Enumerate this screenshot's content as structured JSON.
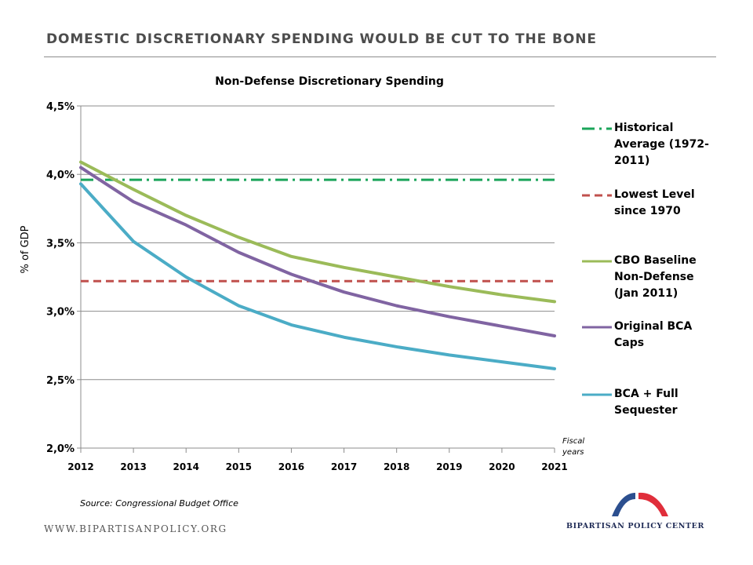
{
  "header": {
    "title": "DOMESTIC DISCRETIONARY SPENDING WOULD BE CUT TO THE BONE"
  },
  "chart_data": {
    "type": "line",
    "title": "Non-Defense Discretionary Spending",
    "ylabel": "% of GDP",
    "xlabel_note": "Fiscal years",
    "ylim": [
      2.0,
      4.5
    ],
    "yticks": [
      {
        "value": 4.5,
        "label": "4,5%"
      },
      {
        "value": 4.0,
        "label": "4,0%"
      },
      {
        "value": 3.5,
        "label": "3,5%"
      },
      {
        "value": 3.0,
        "label": "3,0%"
      },
      {
        "value": 2.5,
        "label": "2,5%"
      },
      {
        "value": 2.0,
        "label": "2,0%"
      }
    ],
    "x": [
      "2012",
      "2013",
      "2014",
      "2015",
      "2016",
      "2017",
      "2018",
      "2019",
      "2020",
      "2021"
    ],
    "grid": "horizontal",
    "legend_position": "right",
    "reference_lines": [
      {
        "name": "Historical Average (1972-2011)",
        "value": 3.96,
        "color": "#1aa55a",
        "style": "dash-dot"
      },
      {
        "name": "Lowest Level since 1970",
        "value": 3.22,
        "color": "#c0504d",
        "style": "dashed"
      }
    ],
    "series": [
      {
        "name": "CBO Baseline Non-Defense (Jan 2011)",
        "color": "#9bbb59",
        "values": [
          4.09,
          3.89,
          3.7,
          3.54,
          3.4,
          3.32,
          3.25,
          3.18,
          3.12,
          3.07
        ]
      },
      {
        "name": "Original BCA Caps",
        "color": "#8064a2",
        "values": [
          4.05,
          3.8,
          3.63,
          3.43,
          3.27,
          3.14,
          3.04,
          2.96,
          2.89,
          2.82
        ]
      },
      {
        "name": "BCA + Full Sequester",
        "color": "#4bacc6",
        "values": [
          3.93,
          3.51,
          3.25,
          3.04,
          2.9,
          2.81,
          2.74,
          2.68,
          2.63,
          2.58
        ]
      }
    ]
  },
  "footer": {
    "source": "Source: Congressional Budget Office",
    "website": "WWW.BIPARTISANPOLICY.ORG",
    "org_name": "BIPARTISAN POLICY CENTER",
    "logo_colors": {
      "left_arc": "#2c4f8f",
      "right_arc": "#e02e3b"
    }
  }
}
